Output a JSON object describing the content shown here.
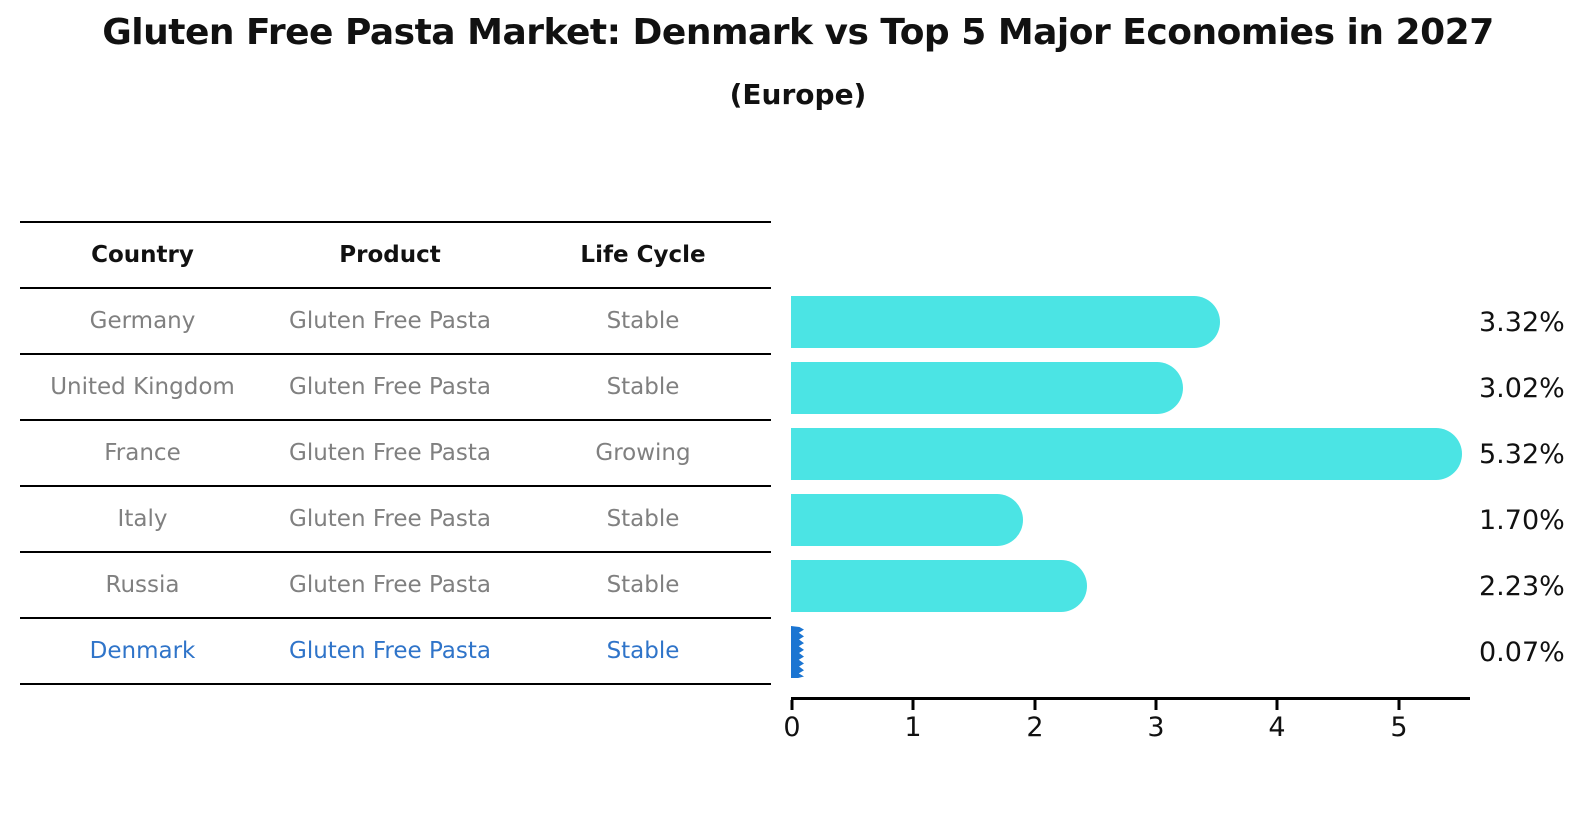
{
  "title": "Gluten Free Pasta Market: Denmark vs Top 5 Major Economies in 2027",
  "subtitle": "(Europe)",
  "table": {
    "headers": [
      "Country",
      "Product",
      "Life Cycle"
    ],
    "rows": [
      {
        "country": "Germany",
        "product": "Gluten Free Pasta",
        "life_cycle": "Stable",
        "highlight": false
      },
      {
        "country": "United Kingdom",
        "product": "Gluten Free Pasta",
        "life_cycle": "Stable",
        "highlight": false
      },
      {
        "country": "France",
        "product": "Gluten Free Pasta",
        "life_cycle": "Growing",
        "highlight": false
      },
      {
        "country": "Italy",
        "product": "Gluten Free Pasta",
        "life_cycle": "Stable",
        "highlight": false
      },
      {
        "country": "Russia",
        "product": "Gluten Free Pasta",
        "life_cycle": "Stable",
        "highlight": false
      },
      {
        "country": "Denmark",
        "product": "Gluten Free Pasta",
        "life_cycle": "Stable",
        "highlight": true
      }
    ]
  },
  "chart_data": {
    "type": "bar",
    "orientation": "horizontal",
    "title": "Gluten Free Pasta Market: Denmark vs Top 5 Major Economies in 2027",
    "subtitle": "(Europe)",
    "categories": [
      "Germany",
      "United Kingdom",
      "France",
      "Italy",
      "Russia",
      "Denmark"
    ],
    "values": [
      3.32,
      3.02,
      5.32,
      1.7,
      2.23,
      0.07
    ],
    "value_labels": [
      "3.32%",
      "3.02%",
      "5.32%",
      "1.70%",
      "2.23%",
      "0.07%"
    ],
    "unit": "%",
    "xticks": [
      0,
      1,
      2,
      3,
      4,
      5
    ],
    "xlim": [
      0,
      5.6
    ],
    "grid": false,
    "legend": "none",
    "bar_color": "#4BE4E4",
    "highlight_color": "#1B75D2",
    "highlight_index": 5
  },
  "colors": {
    "background": "#ffffff",
    "text": "#111111",
    "table_text": "#808080",
    "highlight_text": "#2F74C9",
    "axis": "#000000"
  }
}
